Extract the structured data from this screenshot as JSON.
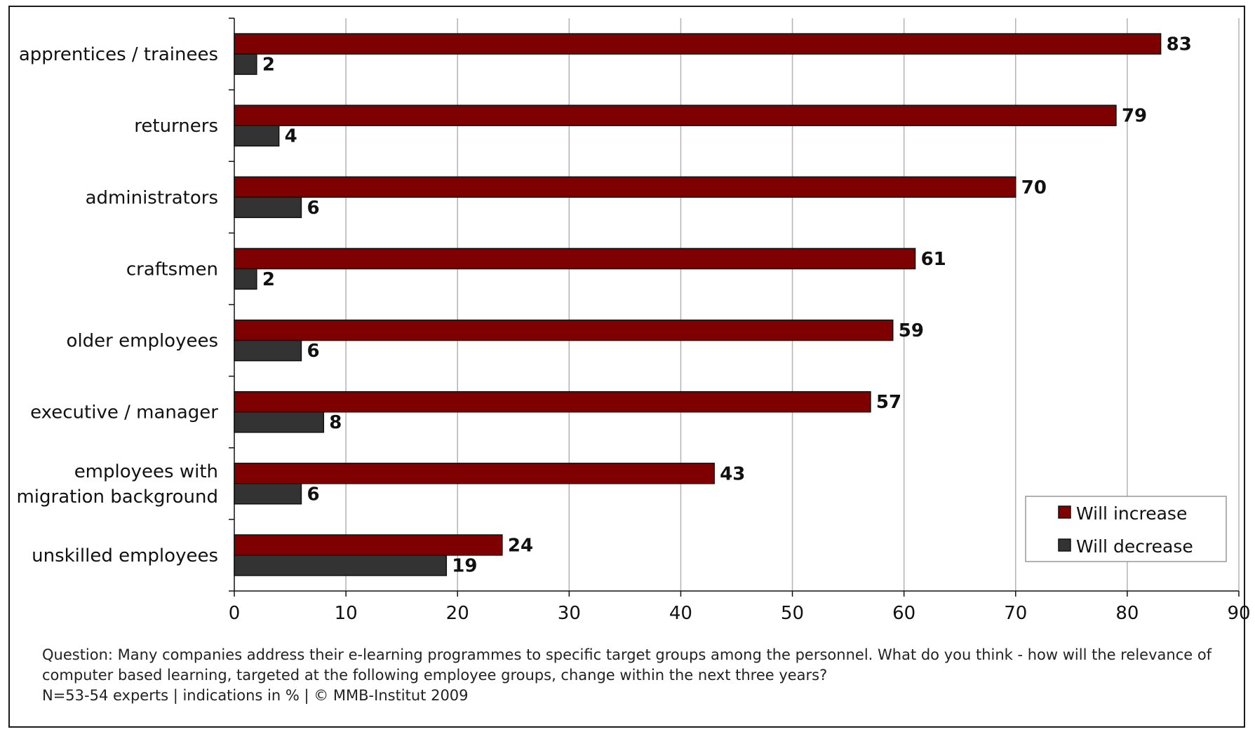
{
  "chart_data": {
    "type": "bar",
    "orientation": "horizontal",
    "categories": [
      "apprentices / trainees",
      "returners",
      "administrators",
      "craftsmen",
      "older employees",
      "executive / manager",
      "employees with migration background",
      "unskilled employees"
    ],
    "category_lines": [
      [
        "apprentices / trainees"
      ],
      [
        "returners"
      ],
      [
        "administrators"
      ],
      [
        "craftsmen"
      ],
      [
        "older employees"
      ],
      [
        "executive / manager"
      ],
      [
        "employees with",
        "migration background"
      ],
      [
        "unskilled employees"
      ]
    ],
    "series": [
      {
        "name": "Will increase",
        "color": "#7f0000",
        "values": [
          83,
          79,
          70,
          61,
          59,
          57,
          43,
          24
        ]
      },
      {
        "name": "Will decrease",
        "color": "#333333",
        "values": [
          2,
          4,
          6,
          2,
          6,
          8,
          6,
          19
        ]
      }
    ],
    "xlim": [
      0,
      90
    ],
    "xticks": [
      0,
      10,
      20,
      30,
      40,
      50,
      60,
      70,
      80,
      90
    ],
    "grid": "vertical",
    "legend_position": "bottom-right",
    "data_labels": true
  },
  "caption": {
    "line1": "Question: Many companies address their e-learning programmes to specific target groups among the personnel. What do you think - how will the relevance of",
    "line2": "computer based learning, targeted at the following employee groups, change within the next three years?",
    "line3": "N=53-54 experts | indications in % | © MMB-Institut 2009"
  }
}
